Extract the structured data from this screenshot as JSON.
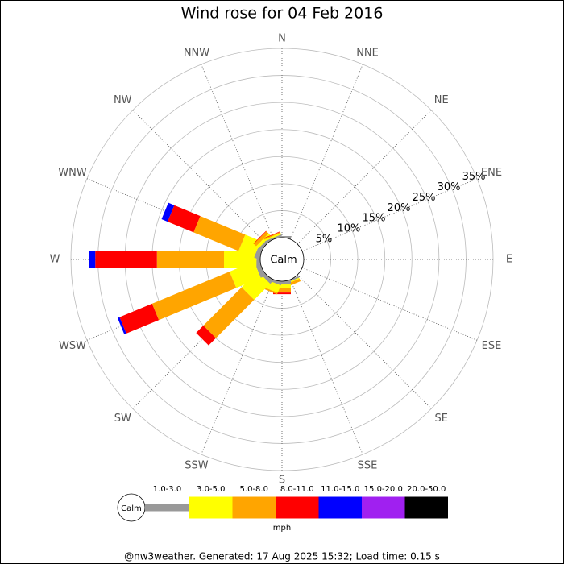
{
  "chart_data": {
    "type": "windrose",
    "title": "Wind rose for 04 Feb 2016",
    "directions": [
      "N",
      "NNE",
      "NE",
      "ENE",
      "E",
      "ESE",
      "SE",
      "SSE",
      "S",
      "SSW",
      "SW",
      "WSW",
      "W",
      "WNW",
      "NW",
      "NNW"
    ],
    "center_label": "Calm",
    "rlim": [
      0,
      35
    ],
    "rticks": [
      {
        "value": 5,
        "label": "5%"
      },
      {
        "value": 10,
        "label": "10%"
      },
      {
        "value": 15,
        "label": "15%"
      },
      {
        "value": 20,
        "label": "20%"
      },
      {
        "value": 25,
        "label": "25%"
      },
      {
        "value": 30,
        "label": "30%"
      },
      {
        "value": 35,
        "label": "35%"
      }
    ],
    "series": [
      {
        "name": "1.0-3.0",
        "color": "#999999",
        "values": [
          0.3,
          0,
          0,
          0,
          0,
          0,
          0,
          0.3,
          0.5,
          0.5,
          0.7,
          0.9,
          0.7,
          0.9,
          0.5,
          0.3
        ]
      },
      {
        "name": "3.0-5.0",
        "color": "#ffff00",
        "values": [
          0,
          0,
          0,
          0,
          0,
          0,
          0,
          0.2,
          0.8,
          1.5,
          4.2,
          4.9,
          6.0,
          3.1,
          0.6,
          0.3
        ]
      },
      {
        "name": "5.0-8.0",
        "color": "#ffa500",
        "values": [
          0,
          0,
          0,
          0,
          0,
          0,
          0,
          0.5,
          0.8,
          0.3,
          10.0,
          15.5,
          12.4,
          9.0,
          0.6,
          0.2
        ]
      },
      {
        "name": "8.0-11.0",
        "color": "#ff0000",
        "values": [
          0,
          0,
          0,
          0,
          0,
          0,
          0,
          0,
          0.3,
          0,
          1.9,
          6.5,
          11.4,
          5.2,
          0.1,
          0.1
        ]
      },
      {
        "name": "11.0-15.0",
        "color": "#0000ff",
        "values": [
          0,
          0,
          0,
          0,
          0,
          0,
          0,
          0,
          0,
          0,
          0,
          0.4,
          1.2,
          1.2,
          0,
          0
        ]
      },
      {
        "name": "15.0-20.0",
        "color": "#a020f0",
        "values": [
          0,
          0,
          0,
          0,
          0,
          0,
          0,
          0,
          0,
          0,
          0,
          0,
          0,
          0,
          0,
          0
        ]
      },
      {
        "name": "20.0-50.0",
        "color": "#000000",
        "values": [
          0,
          0,
          0,
          0,
          0,
          0,
          0,
          0,
          0,
          0,
          0,
          0,
          0,
          0,
          0,
          0
        ]
      }
    ],
    "unit": "mph",
    "footer": "@nw3weather. Generated: 17 Aug 2025 15:32; Load time: 0.15 s"
  }
}
